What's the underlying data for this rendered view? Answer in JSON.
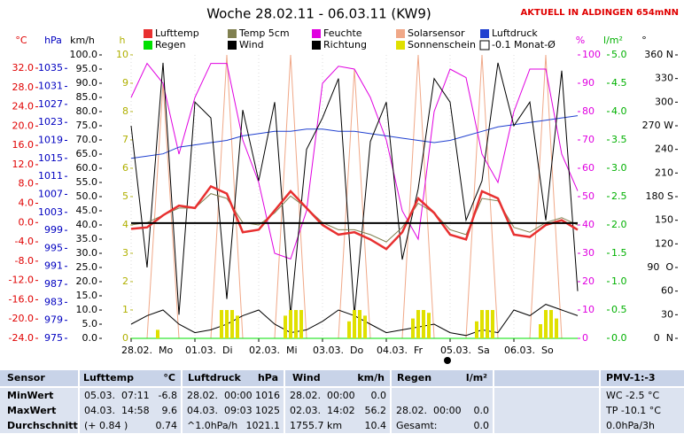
{
  "header": {
    "title": "Woche 28.02.11 - 06.03.11 (KW9)",
    "station": "AKTUELL IN ALDINGEN 654mNN"
  },
  "chart_data": {
    "type": "line",
    "x": [
      0,
      6,
      12,
      18,
      24,
      30,
      36,
      42,
      48,
      54,
      60,
      66,
      72,
      78,
      84,
      90,
      96,
      102,
      108,
      114,
      120,
      126,
      132,
      138,
      144,
      150,
      156,
      162,
      168
    ],
    "xlim": [
      0,
      168
    ],
    "xticks": [
      {
        "value": 0,
        "label": "28.02.  Mo"
      },
      {
        "value": 24,
        "label": "01.03.  Di"
      },
      {
        "value": 48,
        "label": "02.03.  Mi"
      },
      {
        "value": 72,
        "label": "03.03.  Do"
      },
      {
        "value": 96,
        "label": "04.03.  Fr"
      },
      {
        "value": 120,
        "label": "05.03.  Sa"
      },
      {
        "value": 144,
        "label": "06.03.  So"
      }
    ],
    "axes": [
      {
        "id": "temp",
        "label": "°C",
        "color": "#e00000",
        "lim": [
          -24,
          34.75
        ],
        "ticks": [
          {
            "value": 32,
            "label": "32.0"
          },
          {
            "value": 28,
            "label": "28.0"
          },
          {
            "value": 24,
            "label": "24.0"
          },
          {
            "value": 20,
            "label": "20.0"
          },
          {
            "value": 16,
            "label": "16.0"
          },
          {
            "value": 12,
            "label": "12.0"
          },
          {
            "value": 8,
            "label": "8.0"
          },
          {
            "value": 4,
            "label": "4.0"
          },
          {
            "value": 0,
            "label": "0.0"
          },
          {
            "value": -4,
            "label": "-4.0"
          },
          {
            "value": -8,
            "label": "-8.0"
          },
          {
            "value": -12,
            "label": "-12.0"
          },
          {
            "value": -16,
            "label": "-16.0"
          },
          {
            "value": -20,
            "label": "-20.0"
          },
          {
            "value": -24,
            "label": "-24.0"
          }
        ]
      },
      {
        "id": "hpa",
        "label": "hPa",
        "color": "#0000c0",
        "lim": [
          975,
          1038
        ],
        "ticks": [
          1035,
          1031,
          1027,
          1023,
          1019,
          1015,
          1011,
          1007,
          1003,
          999,
          995,
          991,
          987,
          983,
          979,
          975
        ]
      },
      {
        "id": "kmh",
        "label": "km/h",
        "color": "#000000",
        "lim": [
          0,
          100
        ],
        "ticks": [
          {
            "value": 100,
            "label": "100.0"
          },
          {
            "value": 95,
            "label": "95.0"
          },
          {
            "value": 90,
            "label": "90.0"
          },
          {
            "value": 85,
            "label": "85.0"
          },
          {
            "value": 80,
            "label": "80.0"
          },
          {
            "value": 75,
            "label": "75.0"
          },
          {
            "value": 70,
            "label": "70.0"
          },
          {
            "value": 65,
            "label": "65.0"
          },
          {
            "value": 60,
            "label": "60.0"
          },
          {
            "value": 55,
            "label": "55.0"
          },
          {
            "value": 50,
            "label": "50.0"
          },
          {
            "value": 45,
            "label": "45.0"
          },
          {
            "value": 40,
            "label": "40.0"
          },
          {
            "value": 35,
            "label": "35.0"
          },
          {
            "value": 30,
            "label": "30.0"
          },
          {
            "value": 25,
            "label": "25.0"
          },
          {
            "value": 20,
            "label": "20.0"
          },
          {
            "value": 15,
            "label": "15.0"
          },
          {
            "value": 10,
            "label": "10.0"
          },
          {
            "value": 5,
            "label": "5.0"
          },
          {
            "value": 0,
            "label": "0.0"
          }
        ]
      },
      {
        "id": "h",
        "label": "h",
        "color": "#b0b000",
        "lim": [
          0,
          10
        ],
        "ticks": [
          10,
          9,
          8,
          7,
          6,
          5,
          4,
          3,
          2,
          1,
          0
        ]
      },
      {
        "id": "pct",
        "label": "%",
        "color": "#e000e0",
        "lim": [
          0,
          100
        ],
        "ticks": [
          100,
          90,
          80,
          70,
          60,
          50,
          40,
          30,
          20,
          10,
          0
        ]
      },
      {
        "id": "rain",
        "label": "l/m²",
        "color": "#00b000",
        "lim": [
          0,
          5
        ],
        "ticks": [
          {
            "value": 5,
            "label": "5.0"
          },
          4.5,
          {
            "value": 4,
            "label": "4.0"
          },
          3.5,
          {
            "value": 3,
            "label": "3.0"
          },
          2.5,
          {
            "value": 2,
            "label": "2.0"
          },
          1.5,
          {
            "value": 1,
            "label": "1.0"
          },
          0.5,
          {
            "value": 0,
            "label": "0.0"
          }
        ]
      },
      {
        "id": "deg",
        "label": "°",
        "color": "#000000",
        "lim": [
          0,
          360
        ],
        "ticks": [
          {
            "value": 360,
            "label": "360 N"
          },
          330,
          300,
          {
            "value": 270,
            "label": "270 W"
          },
          240,
          210,
          {
            "value": 180,
            "label": "180 S"
          },
          150,
          120,
          {
            "value": 90,
            "label": "90  O"
          },
          60,
          30,
          {
            "value": 0,
            "label": "0  N"
          }
        ]
      }
    ],
    "series": [
      {
        "name": "Lufttemp",
        "color": "#e83030",
        "axis": "temp",
        "values": [
          -1.3,
          -1.0,
          1.5,
          3.5,
          3.0,
          7.5,
          6.0,
          -2.0,
          -1.5,
          2.5,
          6.5,
          3.0,
          -0.5,
          -2.5,
          -2.0,
          -3.5,
          -5.5,
          -2.0,
          5.0,
          2.0,
          -2.5,
          -3.5,
          6.5,
          5.0,
          -2.5,
          -3.0,
          -0.5,
          0.5,
          -1.5
        ]
      },
      {
        "name": "Temp 5cm",
        "color": "#808050",
        "axis": "temp",
        "values": [
          -0.5,
          0,
          1.5,
          3,
          3,
          6,
          5,
          0,
          -0.5,
          2,
          5.5,
          3,
          0,
          -1.5,
          -1.5,
          -2.5,
          -4,
          -1,
          4,
          2,
          -1.5,
          -2.5,
          5,
          4.5,
          -1,
          -2,
          0,
          1,
          -0.5
        ]
      },
      {
        "name": "Feuchte",
        "color": "#e000e0",
        "axis": "pct",
        "values": [
          85,
          97,
          90,
          65,
          85,
          97,
          97,
          70,
          55,
          30,
          28,
          45,
          90,
          96,
          95,
          85,
          70,
          45,
          35,
          80,
          95,
          92,
          65,
          55,
          80,
          95,
          95,
          65,
          52
        ]
      },
      {
        "name": "Solarsensor",
        "color": "#f0a888",
        "axis": "pct",
        "values": [
          0,
          0,
          90,
          0,
          0,
          0,
          100,
          0,
          0,
          0,
          100,
          0,
          0,
          0,
          95,
          0,
          0,
          0,
          100,
          0,
          0,
          0,
          100,
          0,
          0,
          0,
          100,
          0,
          0
        ]
      },
      {
        "name": "Luftdruck",
        "color": "#2040d0",
        "axis": "hpa",
        "values": [
          1015,
          1015.5,
          1016,
          1017.5,
          1018,
          1018.5,
          1019,
          1020,
          1020.5,
          1021,
          1021,
          1021.5,
          1021.5,
          1021,
          1021,
          1020.5,
          1020,
          1019.5,
          1019,
          1018.5,
          1019,
          1020,
          1021,
          1022,
          1022.5,
          1023,
          1023.5,
          1024,
          1024.5
        ]
      },
      {
        "name": "Regen",
        "color": "#00e000",
        "axis": "rain",
        "values": [
          0,
          0,
          0,
          0,
          0,
          0,
          0,
          0,
          0,
          0,
          0,
          0,
          0,
          0,
          0,
          0,
          0,
          0,
          0,
          0,
          0,
          0,
          0,
          0,
          0,
          0,
          0,
          0,
          0
        ]
      },
      {
        "name": "Wind",
        "color": "#000000",
        "axis": "kmh",
        "values": [
          5,
          8,
          10,
          5,
          2,
          3,
          5,
          8,
          10,
          5,
          2,
          3,
          6,
          10,
          8,
          5,
          2,
          3,
          4,
          5,
          2,
          1,
          3,
          2,
          10,
          8,
          12,
          10,
          8
        ]
      },
      {
        "name": "Richtung",
        "color": "#000000",
        "axis": "deg",
        "values": [
          270,
          90,
          350,
          30,
          300,
          280,
          50,
          290,
          200,
          300,
          30,
          240,
          280,
          330,
          30,
          250,
          300,
          100,
          190,
          330,
          300,
          150,
          200,
          350,
          270,
          300,
          150,
          340,
          60
        ]
      },
      {
        "name": "Sonnenschein",
        "color": "#e0e000",
        "axis": "h",
        "type": "bar",
        "x": [
          10,
          34,
          36,
          38,
          40,
          58,
          60,
          62,
          64,
          82,
          84,
          86,
          88,
          106,
          108,
          110,
          112,
          130,
          132,
          134,
          136,
          154,
          156,
          158,
          160
        ],
        "values": [
          0.3,
          1,
          1,
          1,
          0.8,
          0.8,
          1,
          1,
          1,
          0.6,
          1,
          1,
          0.8,
          0.7,
          1,
          1,
          0.9,
          0.6,
          1,
          1,
          1,
          0.5,
          1,
          1,
          0.7
        ]
      },
      {
        "name": "-0.1 Monat-Ø",
        "color": "#000000",
        "axis": "temp",
        "type": "hline",
        "value": -0.1
      }
    ]
  },
  "table": {
    "columns": [
      {
        "name": "Sensor"
      },
      {
        "name": "Lufttemp",
        "unit": "°C"
      },
      {
        "name": "Luftdruck",
        "unit": "hPa"
      },
      {
        "name": "Wind",
        "unit": "km/h"
      },
      {
        "name": "Regen",
        "unit": "l/m²"
      },
      {
        "name": "PMV-1:-3"
      }
    ],
    "rows": [
      {
        "label": "MinWert",
        "lufttemp": [
          "05.03.  07:11",
          "-6.8"
        ],
        "luftdruck": [
          "28.02.  00:00",
          "1016"
        ],
        "wind": [
          "28.02.  00:00",
          "0.0"
        ],
        "pmv": "WC -2.5 °C"
      },
      {
        "label": "MaxWert",
        "lufttemp": [
          "04.03.  14:58",
          "9.6"
        ],
        "luftdruck": [
          "04.03.  09:03",
          "1025"
        ],
        "wind": [
          "02.03.  14:02",
          "56.2"
        ],
        "regen": [
          "28.02.  00:00",
          "0.0"
        ],
        "pmv": "TP -10.1 °C"
      },
      {
        "label": "Durchschnitt",
        "lufttemp": [
          "(+ 0.84 )",
          "0.74"
        ],
        "luftdruck": [
          "^1.0hPa/h",
          "1021.1"
        ],
        "wind": [
          "1755.7 km",
          "10.4"
        ],
        "regen": [
          "Gesamt:",
          "0.0"
        ],
        "pmv": "0.0hPa/3h"
      }
    ]
  }
}
